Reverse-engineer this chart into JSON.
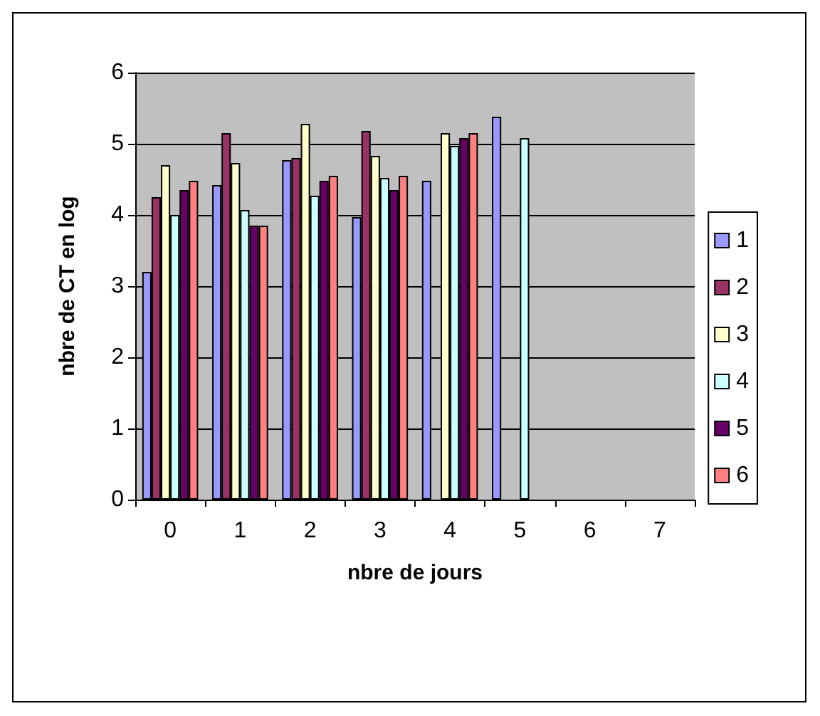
{
  "chart_data": {
    "type": "bar",
    "xlabel": "nbre de jours",
    "ylabel": "nbre de CT en log",
    "categories": [
      "0",
      "1",
      "2",
      "3",
      "4",
      "5",
      "6",
      "7"
    ],
    "series": [
      {
        "name": "1",
        "color": "#9999ff",
        "values": [
          3.2,
          4.42,
          4.77,
          3.97,
          4.48,
          5.38,
          null,
          null
        ]
      },
      {
        "name": "2",
        "color": "#993366",
        "values": [
          4.25,
          5.15,
          4.8,
          5.18,
          null,
          null,
          null,
          null
        ]
      },
      {
        "name": "3",
        "color": "#ffffcc",
        "values": [
          4.7,
          4.73,
          5.28,
          4.83,
          5.15,
          null,
          null,
          null
        ]
      },
      {
        "name": "4",
        "color": "#ccffff",
        "values": [
          4.0,
          4.07,
          4.27,
          4.52,
          4.97,
          5.08,
          null,
          null
        ]
      },
      {
        "name": "5",
        "color": "#660066",
        "values": [
          4.35,
          3.85,
          4.48,
          4.35,
          5.08,
          null,
          null,
          null
        ]
      },
      {
        "name": "6",
        "color": "#ff8080",
        "values": [
          4.48,
          3.85,
          4.55,
          4.55,
          5.15,
          null,
          null,
          null
        ]
      }
    ],
    "ylim": [
      0,
      6
    ],
    "yticks": [
      0,
      1,
      2,
      3,
      4,
      5,
      6
    ],
    "grid": "y",
    "legend": "right"
  }
}
